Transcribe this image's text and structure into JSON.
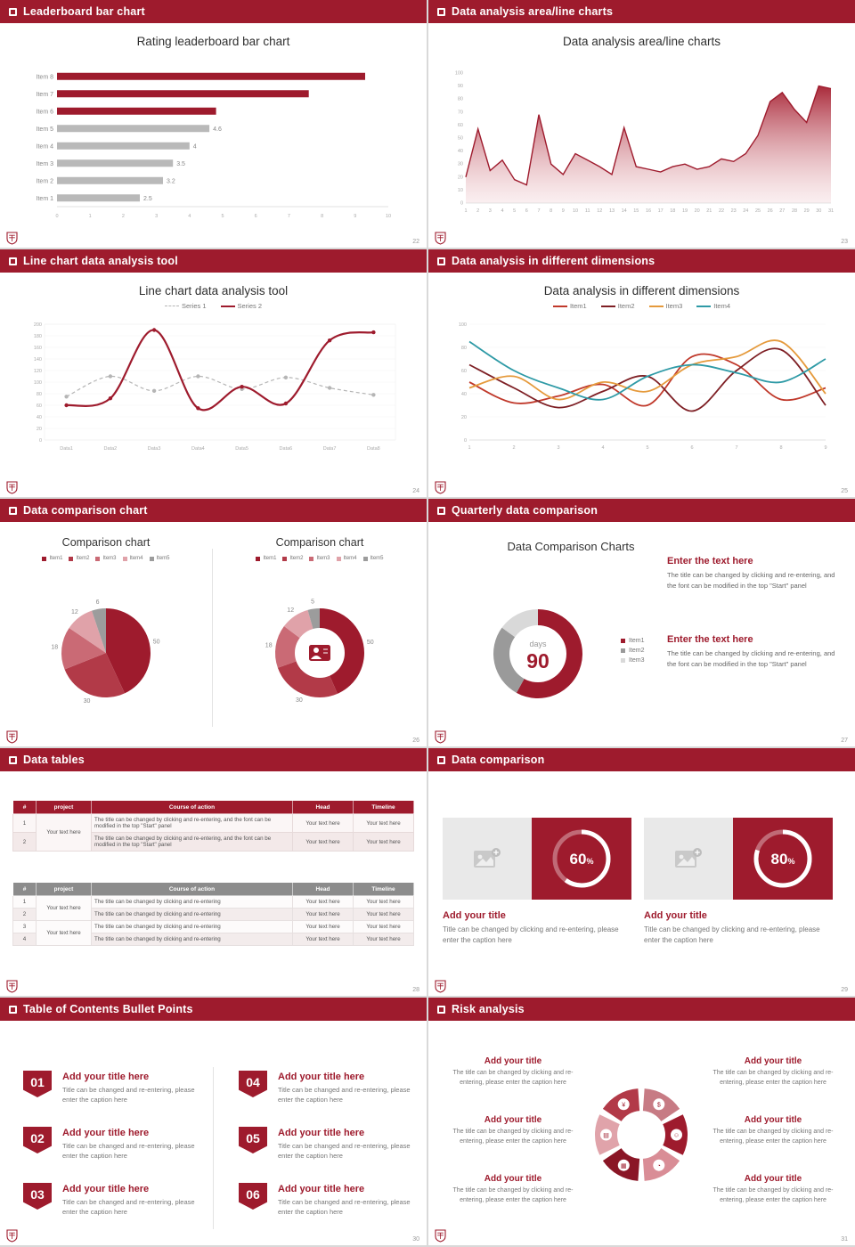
{
  "theme": {
    "accent": "#9e1b2d",
    "bg": "#d9d9d9",
    "gray_bar": "#b9b9b9"
  },
  "slides": [
    {
      "type": "bar-h",
      "header": "Leaderboard bar chart",
      "page": "22",
      "title": "Rating leaderboard bar chart",
      "chart_data": {
        "type": "bar",
        "orientation": "horizontal",
        "categories": [
          "Item 1",
          "Item 2",
          "Item 3",
          "Item 4",
          "Item 5",
          "Item 6",
          "Item 7",
          "Item 8"
        ],
        "values": [
          2.5,
          3.2,
          3.5,
          4,
          4.6,
          4.8,
          7.6,
          9.3
        ],
        "value_labels": [
          "2.5",
          "3.2",
          "3.5",
          "4",
          "4.6",
          "",
          "",
          ""
        ],
        "colors": [
          "#b9b9b9",
          "#b9b9b9",
          "#b9b9b9",
          "#b9b9b9",
          "#b9b9b9",
          "#9e1b2d",
          "#9e1b2d",
          "#9e1b2d"
        ],
        "xlim": [
          0,
          10
        ],
        "xticks": [
          0,
          1,
          2,
          3,
          4,
          5,
          6,
          7,
          8,
          9,
          10
        ]
      }
    },
    {
      "type": "area",
      "header": "Data analysis area/line charts",
      "page": "23",
      "title": "Data analysis area/line charts",
      "chart_data": {
        "type": "area",
        "x": [
          1,
          2,
          3,
          4,
          5,
          6,
          7,
          8,
          9,
          10,
          11,
          12,
          13,
          14,
          15,
          16,
          17,
          18,
          19,
          20,
          21,
          22,
          23,
          24,
          25,
          26,
          27,
          28,
          29,
          30,
          31
        ],
        "values": [
          20,
          57,
          25,
          33,
          18,
          14,
          68,
          30,
          22,
          38,
          33,
          28,
          22,
          58,
          28,
          26,
          24,
          28,
          30,
          26,
          28,
          34,
          32,
          38,
          52,
          78,
          85,
          72,
          62,
          90,
          88
        ],
        "ylim": [
          0,
          100
        ],
        "yticks": [
          0,
          10,
          20,
          30,
          40,
          50,
          60,
          70,
          80,
          90,
          100
        ],
        "line_color": "#9e1b2d"
      }
    },
    {
      "type": "line",
      "header": "Line chart data analysis tool",
      "page": "24",
      "title": "Line chart data analysis tool",
      "chart_data": {
        "type": "line",
        "categories": [
          "Data1",
          "Data2",
          "Data3",
          "Data4",
          "Data5",
          "Data6",
          "Data7",
          "Data8"
        ],
        "series": [
          {
            "name": "Series 1",
            "color": "#b5b5b5",
            "dash": true,
            "values": [
              75,
              110,
              85,
              110,
              88,
              108,
              90,
              78
            ]
          },
          {
            "name": "Series 2",
            "color": "#9e1b2d",
            "dash": false,
            "values": [
              60,
              72,
              190,
              55,
              92,
              63,
              172,
              186
            ]
          }
        ],
        "ylim": [
          0,
          200
        ],
        "ytick_step": 20
      }
    },
    {
      "type": "multiline",
      "header": "Data analysis in different dimensions",
      "page": "25",
      "title": "Data analysis in different dimensions",
      "chart_data": {
        "type": "line",
        "x": [
          1,
          2,
          3,
          4,
          5,
          6,
          7,
          8,
          9
        ],
        "series": [
          {
            "name": "Item1",
            "color": "#c0392b",
            "values": [
              50,
              32,
              38,
              48,
              30,
              72,
              65,
              35,
              45
            ]
          },
          {
            "name": "Item2",
            "color": "#7e1f24",
            "values": [
              65,
              45,
              28,
              42,
              55,
              25,
              60,
              78,
              30
            ]
          },
          {
            "name": "Item3",
            "color": "#e59a3c",
            "values": [
              45,
              55,
              35,
              50,
              42,
              65,
              72,
              85,
              40
            ]
          },
          {
            "name": "Item4",
            "color": "#2e9aa6",
            "values": [
              85,
              60,
              45,
              35,
              55,
              65,
              58,
              50,
              70
            ]
          }
        ],
        "ylim": [
          0,
          100
        ],
        "ytick_step": 20
      }
    },
    {
      "type": "pies",
      "header": "Data comparison chart",
      "page": "26",
      "charts": [
        {
          "title": "Comparison chart",
          "style": "pie",
          "legend": [
            "Item1",
            "Item2",
            "Item3",
            "Item4",
            "Item5"
          ],
          "values": [
            50,
            30,
            18,
            12,
            6
          ],
          "colors": [
            "#9e1b2d",
            "#b23a48",
            "#ca6a75",
            "#e0a2a9",
            "#9c9c9c"
          ]
        },
        {
          "title": "Comparison chart",
          "style": "donut",
          "legend": [
            "Item1",
            "Item2",
            "Item3",
            "Item4",
            "Item5"
          ],
          "values": [
            50,
            30,
            18,
            12,
            5
          ],
          "colors": [
            "#9e1b2d",
            "#b23a48",
            "#ca6a75",
            "#e0a2a9",
            "#9c9c9c"
          ]
        }
      ]
    },
    {
      "type": "donut-days",
      "header": "Quarterly data comparison",
      "page": "27",
      "title": "Data Comparison Charts",
      "chart_data": {
        "type": "pie",
        "labels": [
          "Item1",
          "Item2",
          "Item3"
        ],
        "values": [
          58,
          27,
          15
        ],
        "colors": [
          "#9e1b2d",
          "#9a9a9a",
          "#d9d9d9"
        ],
        "center_label": "days",
        "center_value": "90"
      },
      "blocks": [
        {
          "heading": "Enter the text here",
          "body": "The title can be changed by clicking and re-entering, and the font can be modified in the top \"Start\" panel"
        },
        {
          "heading": "Enter the text here",
          "body": "The title can be changed by clicking and re-entering, and the font can be modified in the top \"Start\" panel"
        }
      ]
    },
    {
      "type": "tables",
      "header": "Data tables",
      "page": "28",
      "tables": [
        {
          "header_bg": "#9e1b2d",
          "columns": [
            "#",
            "project",
            "Course of action",
            "Head",
            "Timeline"
          ],
          "project_label": "Your text here",
          "rows": [
            {
              "num": "1",
              "course": "The title can be changed by clicking and re-entering, and the font can be modified in the top \"Start\" panel",
              "head": "Your text here",
              "timeline": "Your text here"
            },
            {
              "num": "2",
              "course": "The title can be changed by clicking and re-entering, and the font can be modified in the top \"Start\" panel",
              "head": "Your text here",
              "timeline": "Your text here"
            }
          ]
        },
        {
          "header_bg": "#8c8c8c",
          "columns": [
            "#",
            "project",
            "Course of action",
            "Head",
            "Timeline"
          ],
          "project_label": "Your text here",
          "rows": [
            {
              "num": "1",
              "course": "The title can be changed by clicking and re-entering",
              "head": "Your text here",
              "timeline": "Your text here"
            },
            {
              "num": "2",
              "course": "The title can be changed by clicking and re-entering",
              "head": "Your text here",
              "timeline": "Your text here"
            },
            {
              "num": "3",
              "course": "The title can be changed by clicking and re-entering",
              "head": "Your text here",
              "timeline": "Your text here"
            },
            {
              "num": "4",
              "course": "The title can be changed by clicking and re-entering",
              "head": "Your text here",
              "timeline": "Your text here"
            }
          ]
        }
      ]
    },
    {
      "type": "progress-cards",
      "header": "Data comparison",
      "page": "29",
      "cards": [
        {
          "percent": 60,
          "title": "Add your title",
          "caption": "Title can be changed by clicking and re-entering, please enter the caption here"
        },
        {
          "percent": 80,
          "title": "Add your title",
          "caption": "Title can be changed by clicking and re-entering, please enter the caption here"
        }
      ]
    },
    {
      "type": "toc",
      "header": "Table of Contents Bullet Points",
      "page": "30",
      "items": [
        {
          "num": "01",
          "title": "Add your title here",
          "caption": "Title can be changed and re-entering, please enter the caption here"
        },
        {
          "num": "02",
          "title": "Add your title here",
          "caption": "Title can be changed and re-entering, please enter the caption here"
        },
        {
          "num": "03",
          "title": "Add your title here",
          "caption": "Title can be changed and re-entering, please enter the caption here"
        },
        {
          "num": "04",
          "title": "Add your title here",
          "caption": "Title can be changed and re-entering, please enter the caption here"
        },
        {
          "num": "05",
          "title": "Add your title here",
          "caption": "Title can be changed and re-entering, please enter the caption here"
        },
        {
          "num": "06",
          "title": "Add your title here",
          "caption": "Title can be changed and re-entering, please enter the caption here"
        }
      ]
    },
    {
      "type": "wheel",
      "header": "Risk analysis",
      "page": "31",
      "petals": [
        {
          "icon": "coins",
          "glyph": "$",
          "color": "#c77b84"
        },
        {
          "icon": "people",
          "glyph": "☺",
          "color": "#9e1b2d"
        },
        {
          "icon": "pie-chart",
          "glyph": "◔",
          "color": "#d98d96"
        },
        {
          "icon": "calculator",
          "glyph": "▦",
          "color": "#8a1626"
        },
        {
          "icon": "report",
          "glyph": "▤",
          "color": "#e0a3aa"
        },
        {
          "icon": "money-bag",
          "glyph": "¥",
          "color": "#b23a48"
        }
      ],
      "blocks": [
        {
          "title": "Add your title",
          "caption": "The title can be changed by clicking and re-entering, please enter the caption here"
        },
        {
          "title": "Add your title",
          "caption": "The title can be changed by clicking and re-entering, please enter the caption here"
        },
        {
          "title": "Add your title",
          "caption": "The title can be changed by clicking and re-entering, please enter the caption here"
        },
        {
          "title": "Add your title",
          "caption": "The title can be changed by clicking and re-entering, please enter the caption here"
        },
        {
          "title": "Add your title",
          "caption": "The title can be changed by clicking and re-entering, please enter the caption here"
        },
        {
          "title": "Add your title",
          "caption": "The title can be changed by clicking and re-entering, please enter the caption here"
        }
      ]
    }
  ]
}
